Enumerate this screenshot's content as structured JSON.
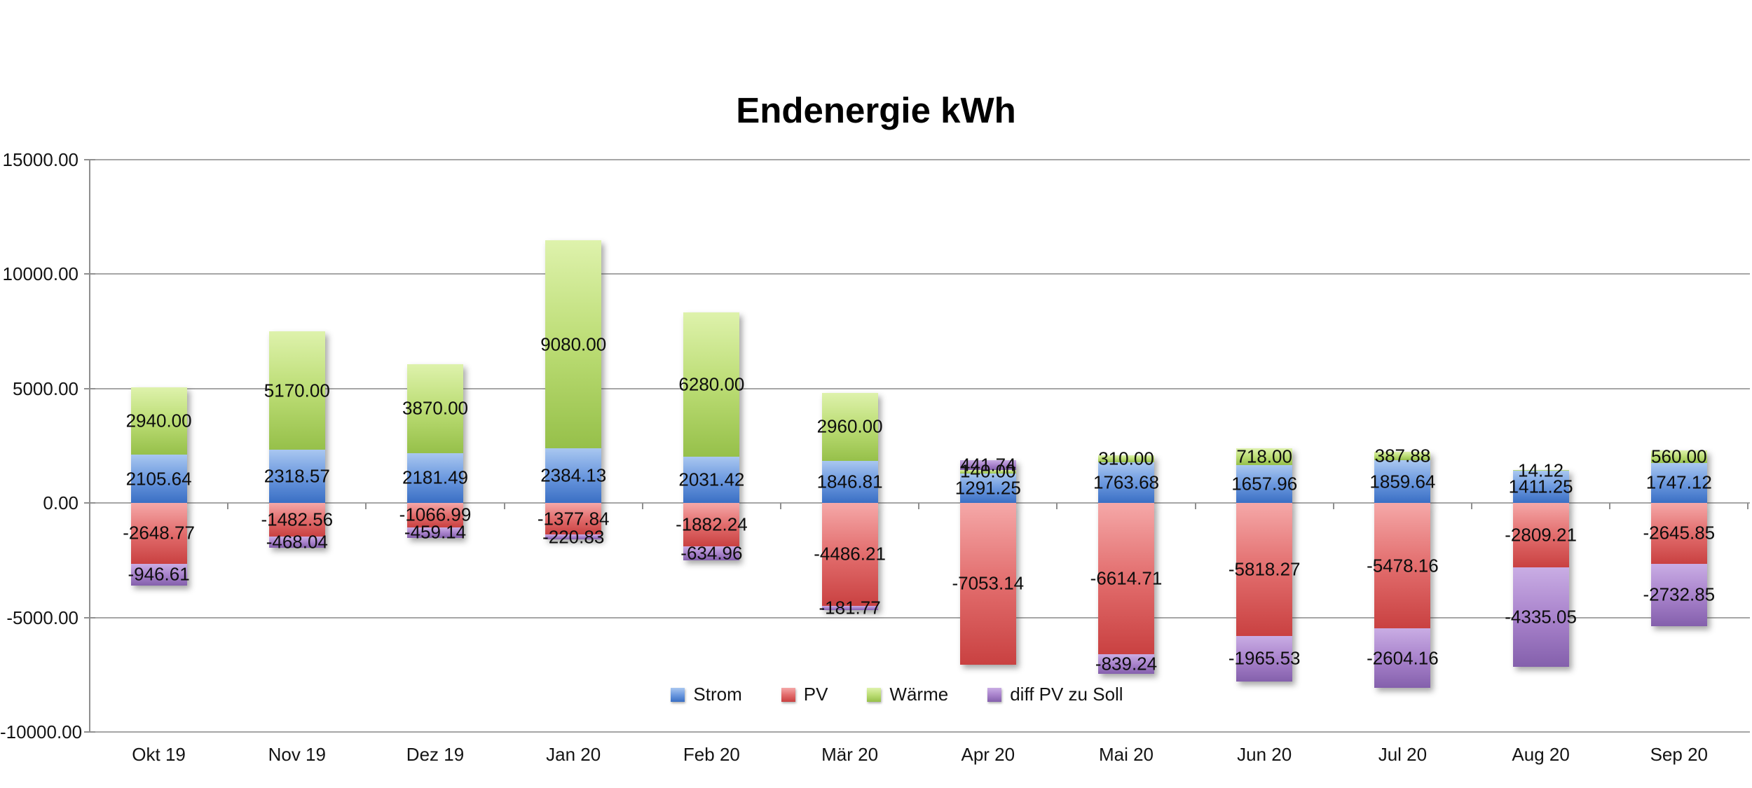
{
  "title": "Endenergie kWh",
  "chart_data": {
    "type": "bar",
    "stacked": true,
    "title": "Endenergie kWh",
    "grid": true,
    "legend_position": "bottom-center",
    "value_labels": true,
    "ylim": [
      -10000,
      15000
    ],
    "y_ticks": [
      {
        "value": 15000,
        "label": "15000.00"
      },
      {
        "value": 10000,
        "label": "10000.00"
      },
      {
        "value": 5000,
        "label": "5000.00"
      },
      {
        "value": 0,
        "label": "0.00"
      },
      {
        "value": -5000,
        "label": "-5000.00"
      },
      {
        "value": -10000,
        "label": "-10000.00"
      }
    ],
    "categories": [
      "Okt 19",
      "Nov 19",
      "Dez 19",
      "Jan 20",
      "Feb 20",
      "Mär 20",
      "Apr 20",
      "Mai 20",
      "Jun 20",
      "Jul 20",
      "Aug 20",
      "Sep 20"
    ],
    "series": [
      {
        "name": "Strom",
        "slug": "strom",
        "color_top": "#A9C7F0",
        "color_mid": "#6C99DF",
        "color_bottom": "#3A6FC4",
        "values": [
          2105.64,
          2318.57,
          2181.49,
          2384.13,
          2031.42,
          1846.81,
          1291.25,
          1763.68,
          1657.96,
          1859.64,
          1411.25,
          1747.12
        ]
      },
      {
        "name": "PV",
        "slug": "pv",
        "color_top": "#F5A8A8",
        "color_mid": "#E26D6D",
        "color_bottom": "#C94141",
        "values": [
          -2648.77,
          -1482.56,
          -1066.99,
          -1377.84,
          -1882.24,
          -4486.21,
          -7053.14,
          -6614.71,
          -5818.27,
          -5478.16,
          -2809.21,
          -2645.85
        ]
      },
      {
        "name": "Wärme",
        "slug": "waerme",
        "color_top": "#DEF2AC",
        "color_mid": "#BCDD75",
        "color_bottom": "#96C04A",
        "values": [
          2940.0,
          5170.0,
          3870.0,
          9080.0,
          6280.0,
          2960.0,
          140.0,
          310.0,
          718.0,
          387.88,
          14.12,
          560.0
        ]
      },
      {
        "name": "diff PV zu Soll",
        "slug": "diff-pv-zu-soll",
        "color_top": "#C9ADE4",
        "color_mid": "#A983CC",
        "color_bottom": "#8460AC",
        "values": [
          -946.61,
          -468.04,
          -459.14,
          -220.83,
          -634.96,
          -181.77,
          441.74,
          -839.24,
          -1965.53,
          -2604.16,
          -4335.05,
          -2732.85
        ]
      }
    ]
  }
}
